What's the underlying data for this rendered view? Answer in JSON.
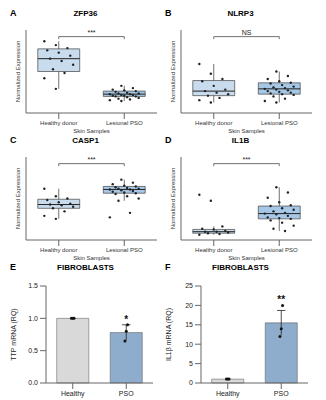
{
  "chart_data": [
    {
      "type": "box",
      "panel": "A",
      "title": "ZFP36",
      "x_label": "Skin Samples",
      "y_label": "Normalized Expression",
      "categories": [
        "Healthy donor",
        "Lesional PSO"
      ],
      "colors": [
        "#c9dcee",
        "#a6c8e6"
      ],
      "ylim": [
        0,
        11
      ],
      "tick_labels": "x",
      "grid": false,
      "significance": "***",
      "boxes": [
        {
          "min": 3.2,
          "q1": 5.5,
          "median": 7.2,
          "q3": 8.5,
          "max": 9.5
        },
        {
          "min": 1.6,
          "q1": 2.2,
          "median": 2.5,
          "q3": 2.9,
          "max": 3.6
        }
      ],
      "points": [
        [
          9.5,
          9.0,
          8.6,
          8.3,
          8.0,
          7.6,
          7.2,
          6.9,
          6.4,
          5.8,
          5.3,
          4.6,
          3.2
        ],
        [
          3.6,
          3.3,
          3.1,
          3.0,
          2.9,
          2.8,
          2.7,
          2.6,
          2.6,
          2.5,
          2.5,
          2.4,
          2.4,
          2.3,
          2.3,
          2.2,
          2.2,
          2.1,
          2.0,
          1.9,
          1.8,
          1.7,
          1.6
        ]
      ]
    },
    {
      "type": "box",
      "panel": "B",
      "title": "NLRP3",
      "x_label": "Skin Samples",
      "y_label": "Normalized Expression",
      "categories": [
        "Healthy donor",
        "Lesional PSO"
      ],
      "colors": [
        "#c9dcee",
        "#a6c8e6"
      ],
      "ylim": [
        0,
        11
      ],
      "tick_labels": "x",
      "grid": false,
      "significance": "NS",
      "boxes": [
        {
          "min": 1.4,
          "q1": 2.3,
          "median": 2.9,
          "q3": 4.3,
          "max": 6.5
        },
        {
          "min": 1.4,
          "q1": 2.5,
          "median": 3.2,
          "q3": 4.0,
          "max": 5.5
        }
      ],
      "points": [
        [
          6.5,
          5.2,
          4.5,
          4.2,
          3.6,
          3.1,
          2.9,
          2.7,
          2.5,
          2.3,
          2.0,
          1.7,
          1.4
        ],
        [
          5.5,
          4.9,
          4.5,
          4.2,
          4.0,
          3.9,
          3.7,
          3.5,
          3.4,
          3.3,
          3.2,
          3.1,
          3.0,
          2.9,
          2.8,
          2.7,
          2.6,
          2.5,
          2.4,
          2.2,
          1.9,
          1.6,
          1.4
        ]
      ]
    },
    {
      "type": "box",
      "panel": "C",
      "title": "CASP1",
      "x_label": "Skin Samples",
      "y_label": "Normalized Expression",
      "categories": [
        "Healthy donor",
        "Lesional PSO"
      ],
      "colors": [
        "#c9dcee",
        "#a6c8e6"
      ],
      "ylim": [
        0,
        11
      ],
      "tick_labels": "x",
      "grid": false,
      "significance": "***",
      "boxes": [
        {
          "min": 2.8,
          "q1": 4.2,
          "median": 4.7,
          "q3": 5.4,
          "max": 6.8
        },
        {
          "min": 5.2,
          "q1": 6.2,
          "median": 6.7,
          "q3": 7.1,
          "max": 8.0
        }
      ],
      "points": [
        [
          6.8,
          5.8,
          5.5,
          5.3,
          5.0,
          4.8,
          4.7,
          4.6,
          4.4,
          4.2,
          3.8,
          3.2,
          2.8
        ],
        [
          8.0,
          7.6,
          7.4,
          7.2,
          7.1,
          7.0,
          6.9,
          6.8,
          6.8,
          6.7,
          6.7,
          6.6,
          6.5,
          6.4,
          6.3,
          6.2,
          6.1,
          5.8,
          5.5,
          5.2,
          3.6,
          3.0
        ]
      ]
    },
    {
      "type": "box",
      "panel": "D",
      "title": "IL1B",
      "x_label": "Skin Samples",
      "y_label": "Normalized Expression",
      "categories": [
        "Healthy donor",
        "Lesional PSO"
      ],
      "colors": [
        "#c9dcee",
        "#a6c8e6"
      ],
      "ylim": [
        0,
        11
      ],
      "tick_labels": "x",
      "grid": false,
      "significance": "***",
      "boxes": [
        {
          "min": 0.7,
          "q1": 0.9,
          "median": 1.1,
          "q3": 1.4,
          "max": 1.8
        },
        {
          "min": 1.2,
          "q1": 2.8,
          "median": 3.5,
          "q3": 4.5,
          "max": 7.0
        }
      ],
      "points": [
        [
          6.0,
          5.2,
          1.8,
          1.5,
          1.4,
          1.2,
          1.1,
          1.1,
          1.0,
          0.9,
          0.8,
          0.7
        ],
        [
          7.0,
          6.3,
          5.6,
          5.0,
          4.6,
          4.5,
          4.2,
          4.0,
          3.8,
          3.6,
          3.5,
          3.4,
          3.2,
          3.0,
          2.9,
          2.8,
          2.6,
          2.3,
          1.9,
          1.5,
          1.2
        ]
      ]
    },
    {
      "type": "bar",
      "panel": "E",
      "title": "FIBROBLASTS",
      "y_label": "TTP mRNA (RQ)",
      "categories": [
        "Healthy",
        "PSO"
      ],
      "values": [
        1,
        0.78
      ],
      "errors": [
        0,
        0.12
      ],
      "colors": [
        "#d9d9d9",
        "#8eaccb"
      ],
      "points": [
        [
          1,
          1,
          1
        ],
        [
          0.65,
          0.8,
          0.9
        ]
      ],
      "significance": [
        null,
        "*"
      ],
      "ylim": [
        0,
        1.5
      ],
      "yticks": [
        {
          "value": 0,
          "label": "0.0"
        },
        {
          "value": 0.5,
          "label": "0.5"
        },
        {
          "value": 1,
          "label": "1.0"
        },
        {
          "value": 1.5,
          "label": "1.5"
        }
      ]
    },
    {
      "type": "bar",
      "panel": "F",
      "title": "FIBROBLASTS",
      "y_label": "IL1β mRNA (RQ)",
      "categories": [
        "Healthy",
        "PSO"
      ],
      "values": [
        1,
        15.5
      ],
      "errors": [
        0,
        3.2
      ],
      "colors": [
        "#d9d9d9",
        "#8eaccb"
      ],
      "points": [
        [
          1,
          1,
          1
        ],
        [
          12,
          14,
          20
        ]
      ],
      "significance": [
        null,
        "**"
      ],
      "ylim": [
        0,
        25
      ],
      "yticks": [
        0,
        5,
        10,
        15,
        20,
        25
      ]
    }
  ]
}
